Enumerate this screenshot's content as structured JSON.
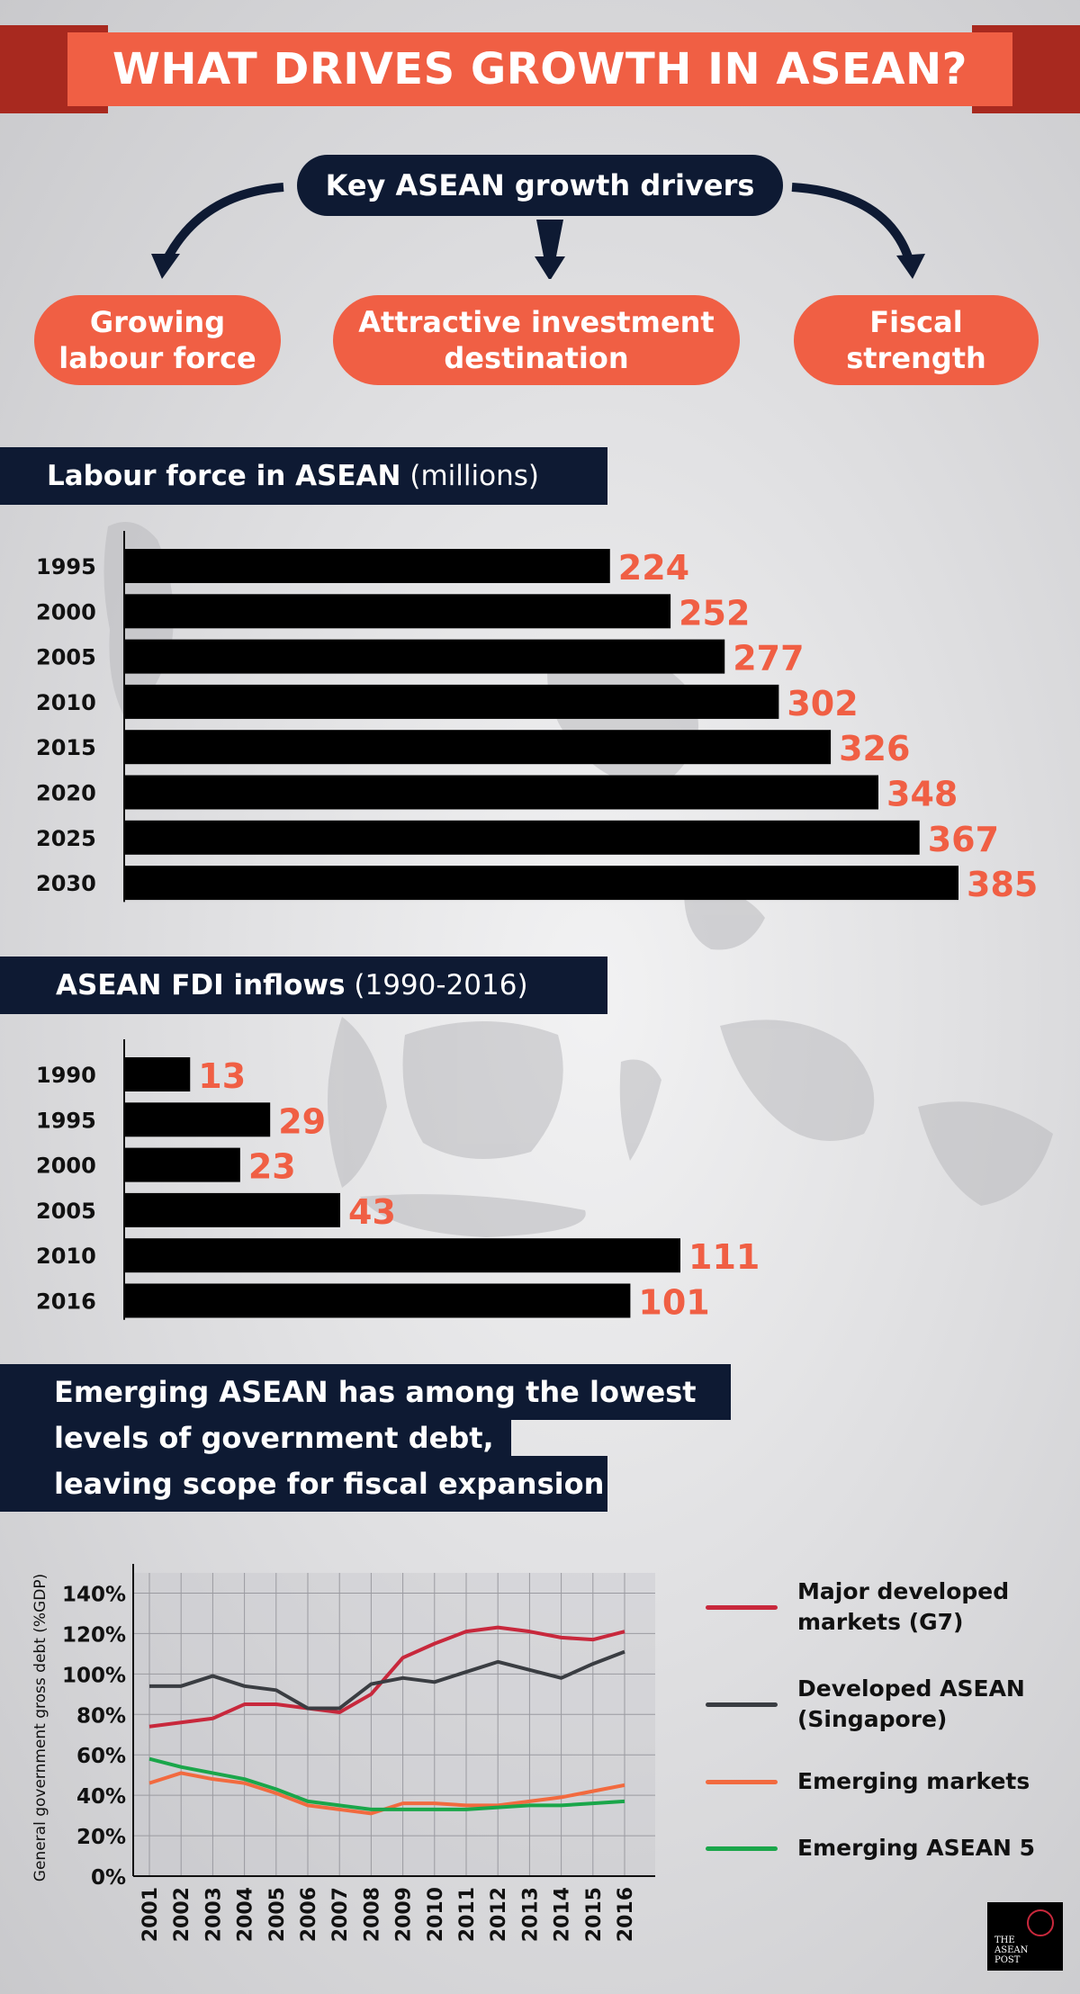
{
  "header": {
    "title": "WHAT DRIVES GROWTH IN ASEAN?"
  },
  "drivers": {
    "title": "Key ASEAN growth drivers",
    "items": [
      {
        "line1": "Growing",
        "line2": "labour force"
      },
      {
        "line1": "Attractive investment",
        "line2": "destination"
      },
      {
        "line1": "Fiscal",
        "line2": "strength"
      }
    ]
  },
  "sections": {
    "labour": {
      "bold": "Labour force in ASEAN",
      "light": "(millions)"
    },
    "fdi": {
      "bold": "ASEAN FDI inflows",
      "light": "(1990-2016)"
    },
    "debt": {
      "line1": "Emerging ASEAN has among the lowest",
      "line2": "levels of government debt,",
      "line3": "leaving scope for fiscal expansion"
    }
  },
  "colors": {
    "accent": "#f05f44",
    "navy": "#0e1a33",
    "bar": "#000000",
    "g7": "#c8283c",
    "singapore": "#3a3d42",
    "emerging": "#f26a3f",
    "asean5": "#1aa64a"
  },
  "chart_data": [
    {
      "type": "bar",
      "orientation": "horizontal",
      "categories": [
        "1995",
        "2000",
        "2005",
        "2010",
        "2015",
        "2020",
        "2025",
        "2030"
      ],
      "values": [
        224,
        252,
        277,
        302,
        326,
        348,
        367,
        385
      ],
      "data_labels": [
        "224",
        "252",
        "277",
        "302",
        "326",
        "348",
        "367",
        "385"
      ]
    },
    {
      "type": "bar",
      "orientation": "horizontal",
      "categories": [
        "1990",
        "1995",
        "2000",
        "2005",
        "2010",
        "2016"
      ],
      "values": [
        13,
        29,
        23,
        43,
        111,
        101
      ],
      "data_labels": [
        "13",
        "29",
        "23",
        "43",
        "111",
        "101"
      ]
    },
    {
      "type": "line",
      "ylabel": "General government gross debt (%GDP)",
      "x": [
        "2001",
        "2002",
        "2003",
        "2004",
        "2005",
        "2006",
        "2007",
        "2008",
        "2009",
        "2010",
        "2011",
        "2012",
        "2013",
        "2014",
        "2015",
        "2016"
      ],
      "yticks": [
        "0%",
        "20%",
        "40%",
        "60%",
        "80%",
        "100%",
        "120%",
        "140%"
      ],
      "ylim": [
        0,
        150
      ],
      "grid": true,
      "legend": "right",
      "series": [
        {
          "name": "Major developed markets (G7)",
          "color": "#c8283c",
          "values": [
            74,
            76,
            78,
            85,
            85,
            83,
            81,
            90,
            108,
            115,
            121,
            123,
            121,
            118,
            117,
            121
          ]
        },
        {
          "name": "Developed ASEAN (Singapore)",
          "color": "#3a3d42",
          "values": [
            94,
            94,
            99,
            94,
            92,
            83,
            83,
            95,
            98,
            96,
            101,
            106,
            102,
            98,
            105,
            111
          ]
        },
        {
          "name": "Emerging markets",
          "color": "#f26a3f",
          "values": [
            46,
            51,
            48,
            46,
            41,
            35,
            33,
            31,
            36,
            36,
            35,
            35,
            37,
            39,
            42,
            45
          ]
        },
        {
          "name": "Emerging ASEAN 5",
          "color": "#1aa64a",
          "values": [
            58,
            54,
            51,
            48,
            43,
            37,
            35,
            33,
            33,
            33,
            33,
            34,
            35,
            35,
            36,
            37
          ]
        }
      ]
    }
  ]
}
